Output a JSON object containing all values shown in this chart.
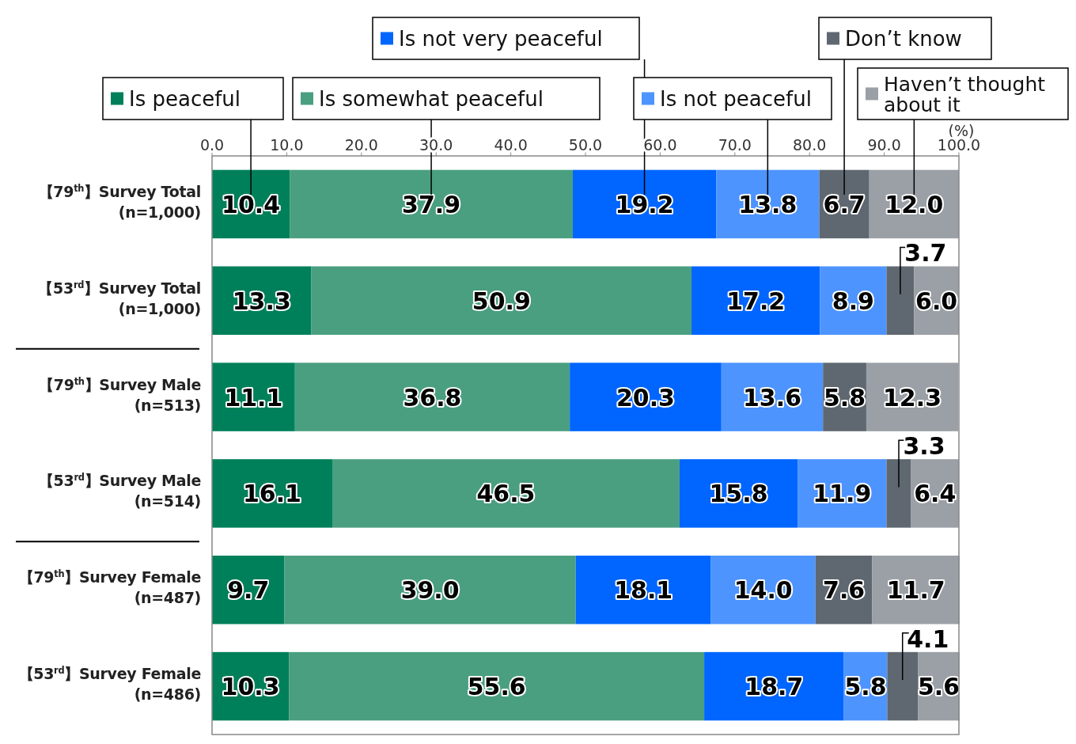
{
  "chart_data": {
    "type": "bar",
    "orientation": "horizontal",
    "stacked": true,
    "legend": "top",
    "grid": false,
    "xlabel": "(%)",
    "categories": [
      "【79$^{th}$】Survey Total\n(n=1,000)",
      "【53$^{rd}$】Survey Total\n(n=1,000)",
      "【79$^{th}$】Survey Male\n(n=513)",
      "【53$^{rd}$】Survey Male\n(n=514)",
      "【79$^{th}$】Survey Female\n(n=487)",
      "【53$^{rd}$】Survey Female\n(n=486)"
    ],
    "xlim": [
      0,
      100
    ],
    "xticks": [
      {
        "value": 0,
        "label": "0.0"
      },
      {
        "value": 10,
        "label": "10.0"
      },
      {
        "value": 20,
        "label": "20.0"
      },
      {
        "value": 30,
        "label": "30.0"
      },
      {
        "value": 40,
        "label": "40.0"
      },
      {
        "value": 50,
        "label": "50.0"
      },
      {
        "value": 60,
        "label": "60.0"
      },
      {
        "value": 70,
        "label": "70.0"
      },
      {
        "value": 80,
        "label": "80.0"
      },
      {
        "value": 90,
        "label": "90.0"
      },
      {
        "value": 100,
        "label": "100.0"
      }
    ],
    "series": [
      {
        "name": "Is peaceful",
        "color": "#00805a",
        "values": [
          10.4,
          13.3,
          11.1,
          16.1,
          9.7,
          10.3
        ],
        "value_labels": [
          "10.4",
          "13.3",
          "11.1",
          "16.1",
          "9.7",
          "10.3"
        ]
      },
      {
        "name": "Is somewhat peaceful",
        "color": "#4a9f80",
        "values": [
          37.9,
          50.9,
          36.8,
          46.5,
          39.0,
          55.6
        ],
        "value_labels": [
          "37.9",
          "50.9",
          "36.8",
          "46.5",
          "39.0",
          "55.6"
        ]
      },
      {
        "name": "Is not very peaceful",
        "color": "#0066ff",
        "values": [
          19.2,
          17.2,
          20.3,
          15.8,
          18.1,
          18.7
        ],
        "value_labels": [
          "19.2",
          "17.2",
          "20.3",
          "15.8",
          "18.1",
          "18.7"
        ]
      },
      {
        "name": "Is not peaceful",
        "color": "#4d94ff",
        "values": [
          13.8,
          8.9,
          13.6,
          11.9,
          14.0,
          5.8
        ],
        "value_labels": [
          "13.8",
          "8.9",
          "13.6",
          "11.9",
          "14.0",
          "5.8"
        ]
      },
      {
        "name": "Don’t know",
        "color": "#5f6870",
        "values": [
          6.7,
          3.7,
          5.8,
          3.3,
          7.6,
          4.1
        ],
        "value_labels": [
          "6.7",
          "3.7",
          "5.8",
          "3.3",
          "7.6",
          "4.1"
        ]
      },
      {
        "name": "Haven’t thought about it",
        "color": "#9aa0a6",
        "values": [
          12.0,
          6.0,
          12.3,
          6.4,
          11.7,
          5.6
        ],
        "value_labels": [
          "12.0",
          "6.0",
          "12.3",
          "6.4",
          "11.7",
          "5.6"
        ]
      }
    ]
  }
}
